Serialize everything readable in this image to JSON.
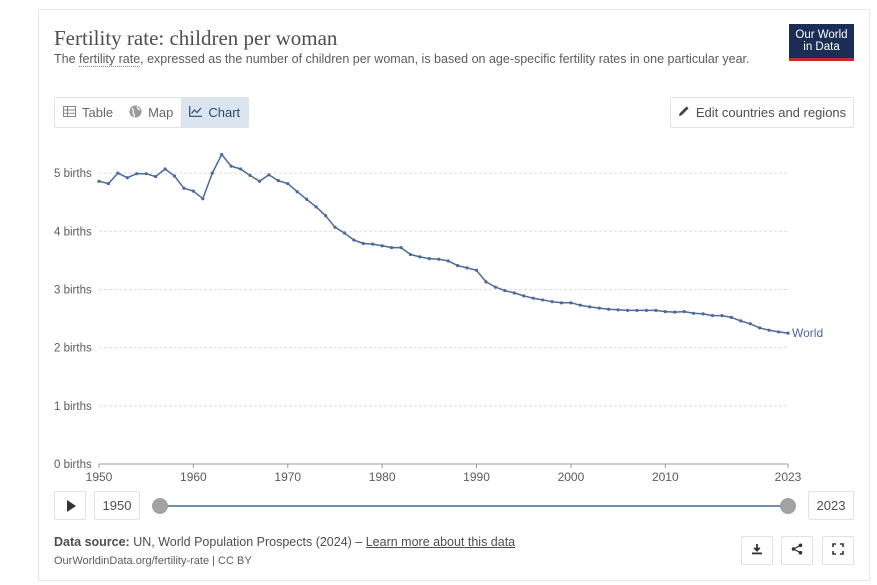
{
  "header": {
    "title": "Fertility rate: children per woman",
    "subtitle_prefix": "The ",
    "subtitle_link": "fertility rate",
    "subtitle_rest": ", expressed as the number of children per woman, is based on age-specific fertility rates in one particular year.",
    "logo_line1": "Our World",
    "logo_line2": "in Data"
  },
  "tabs": [
    {
      "label": "Table",
      "icon": "table-icon",
      "active": false
    },
    {
      "label": "Map",
      "icon": "globe-icon",
      "active": false
    },
    {
      "label": "Chart",
      "icon": "line-chart-icon",
      "active": true
    }
  ],
  "edit_button": {
    "label": "Edit countries and regions",
    "icon": "pencil-icon"
  },
  "timeline": {
    "start_label": "1950",
    "end_label": "2023",
    "start_fraction": 0,
    "end_fraction": 1
  },
  "source": {
    "label": "Data source:",
    "text": " UN, World Population Prospects (2024) – ",
    "link": "Learn more about this data"
  },
  "footer_url": "OurWorldinData.org/fertility-rate | CC BY",
  "actions": [
    {
      "name": "download",
      "icon": "download-icon"
    },
    {
      "name": "share",
      "icon": "share-icon"
    },
    {
      "name": "fullscreen",
      "icon": "fullscreen-icon"
    }
  ],
  "colors": {
    "series": "#4c6a9c",
    "grid": "#dddddd",
    "axis": "#999999"
  },
  "chart_data": {
    "type": "line",
    "ylim": [
      0,
      5.5
    ],
    "xlim": [
      1950,
      2023
    ],
    "y_ticks": [
      0,
      1,
      2,
      3,
      4,
      5
    ],
    "y_tick_labels": [
      "0 births",
      "1 births",
      "2 births",
      "3 births",
      "4 births",
      "5 births"
    ],
    "x_ticks": [
      1950,
      1960,
      1970,
      1980,
      1990,
      2000,
      2010,
      2023
    ],
    "x_tick_labels": [
      "1950",
      "1960",
      "1970",
      "1980",
      "1990",
      "2000",
      "2010",
      "2023"
    ],
    "grid": true,
    "series": [
      {
        "name": "World",
        "x": [
          1950,
          1951,
          1952,
          1953,
          1954,
          1955,
          1956,
          1957,
          1958,
          1959,
          1960,
          1961,
          1962,
          1963,
          1964,
          1965,
          1966,
          1967,
          1968,
          1969,
          1970,
          1971,
          1972,
          1973,
          1974,
          1975,
          1976,
          1977,
          1978,
          1979,
          1980,
          1981,
          1982,
          1983,
          1984,
          1985,
          1986,
          1987,
          1988,
          1989,
          1990,
          1991,
          1992,
          1993,
          1994,
          1995,
          1996,
          1997,
          1998,
          1999,
          2000,
          2001,
          2002,
          2003,
          2004,
          2005,
          2006,
          2007,
          2008,
          2009,
          2010,
          2011,
          2012,
          2013,
          2014,
          2015,
          2016,
          2017,
          2018,
          2019,
          2020,
          2021,
          2022,
          2023
        ],
        "y": [
          4.86,
          4.82,
          5.0,
          4.92,
          4.99,
          4.99,
          4.94,
          5.07,
          4.95,
          4.74,
          4.69,
          4.56,
          5.0,
          5.32,
          5.12,
          5.07,
          4.96,
          4.86,
          4.97,
          4.87,
          4.82,
          4.68,
          4.55,
          4.42,
          4.27,
          4.07,
          3.97,
          3.85,
          3.79,
          3.78,
          3.75,
          3.72,
          3.72,
          3.6,
          3.56,
          3.53,
          3.52,
          3.49,
          3.41,
          3.37,
          3.33,
          3.13,
          3.04,
          2.98,
          2.94,
          2.89,
          2.85,
          2.82,
          2.79,
          2.77,
          2.77,
          2.73,
          2.7,
          2.68,
          2.66,
          2.65,
          2.64,
          2.64,
          2.64,
          2.64,
          2.62,
          2.61,
          2.62,
          2.59,
          2.58,
          2.55,
          2.55,
          2.52,
          2.46,
          2.41,
          2.34,
          2.3,
          2.27,
          2.25
        ]
      }
    ]
  }
}
